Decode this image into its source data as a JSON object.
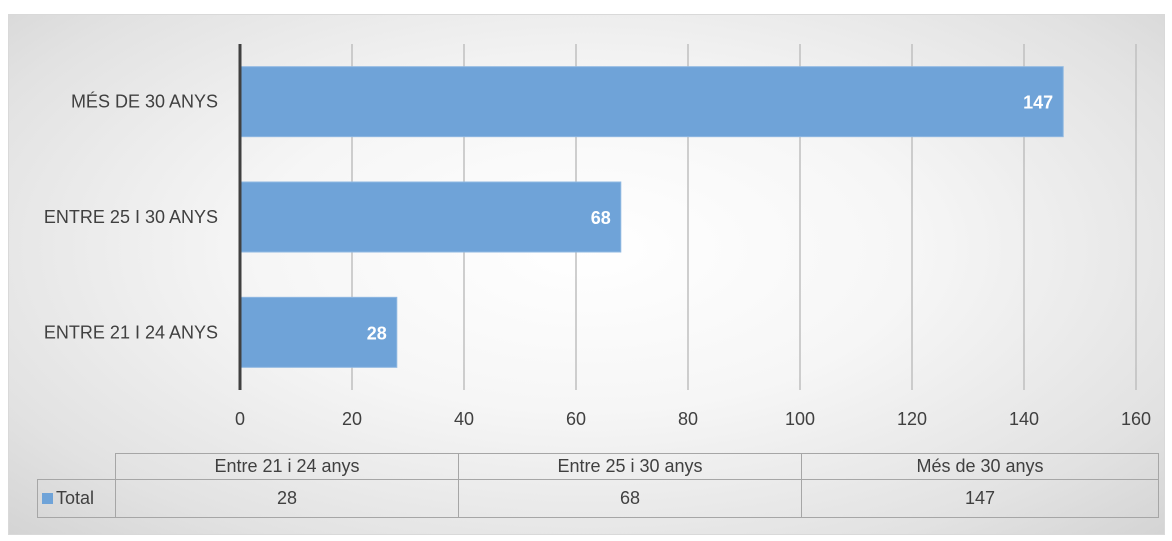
{
  "chart_data": {
    "type": "bar",
    "orientation": "horizontal",
    "categories": [
      "Entre 21 i 24 anys",
      "Entre 25 i 30 anys",
      "Més de 30 anys"
    ],
    "axis_categories": [
      "ENTRE 21 I 24 ANYS",
      "ENTRE 25 I 30 ANYS",
      "MÉS DE 30 ANYS"
    ],
    "series": [
      {
        "name": "Total",
        "values": [
          28,
          68,
          147
        ],
        "color": "#6fa3d8"
      }
    ],
    "x_ticks": [
      "0",
      "20",
      "40",
      "60",
      "80",
      "100",
      "120",
      "140",
      "160"
    ],
    "xlim": [
      0,
      160
    ],
    "grid": true,
    "data_labels": true,
    "data_table": true
  },
  "table": {
    "headers": [
      "Entre 21 i 24 anys",
      "Entre 25 i 30 anys",
      "Més de 30 anys"
    ],
    "row_label": "Total",
    "row_values": [
      "28",
      "68",
      "147"
    ]
  }
}
